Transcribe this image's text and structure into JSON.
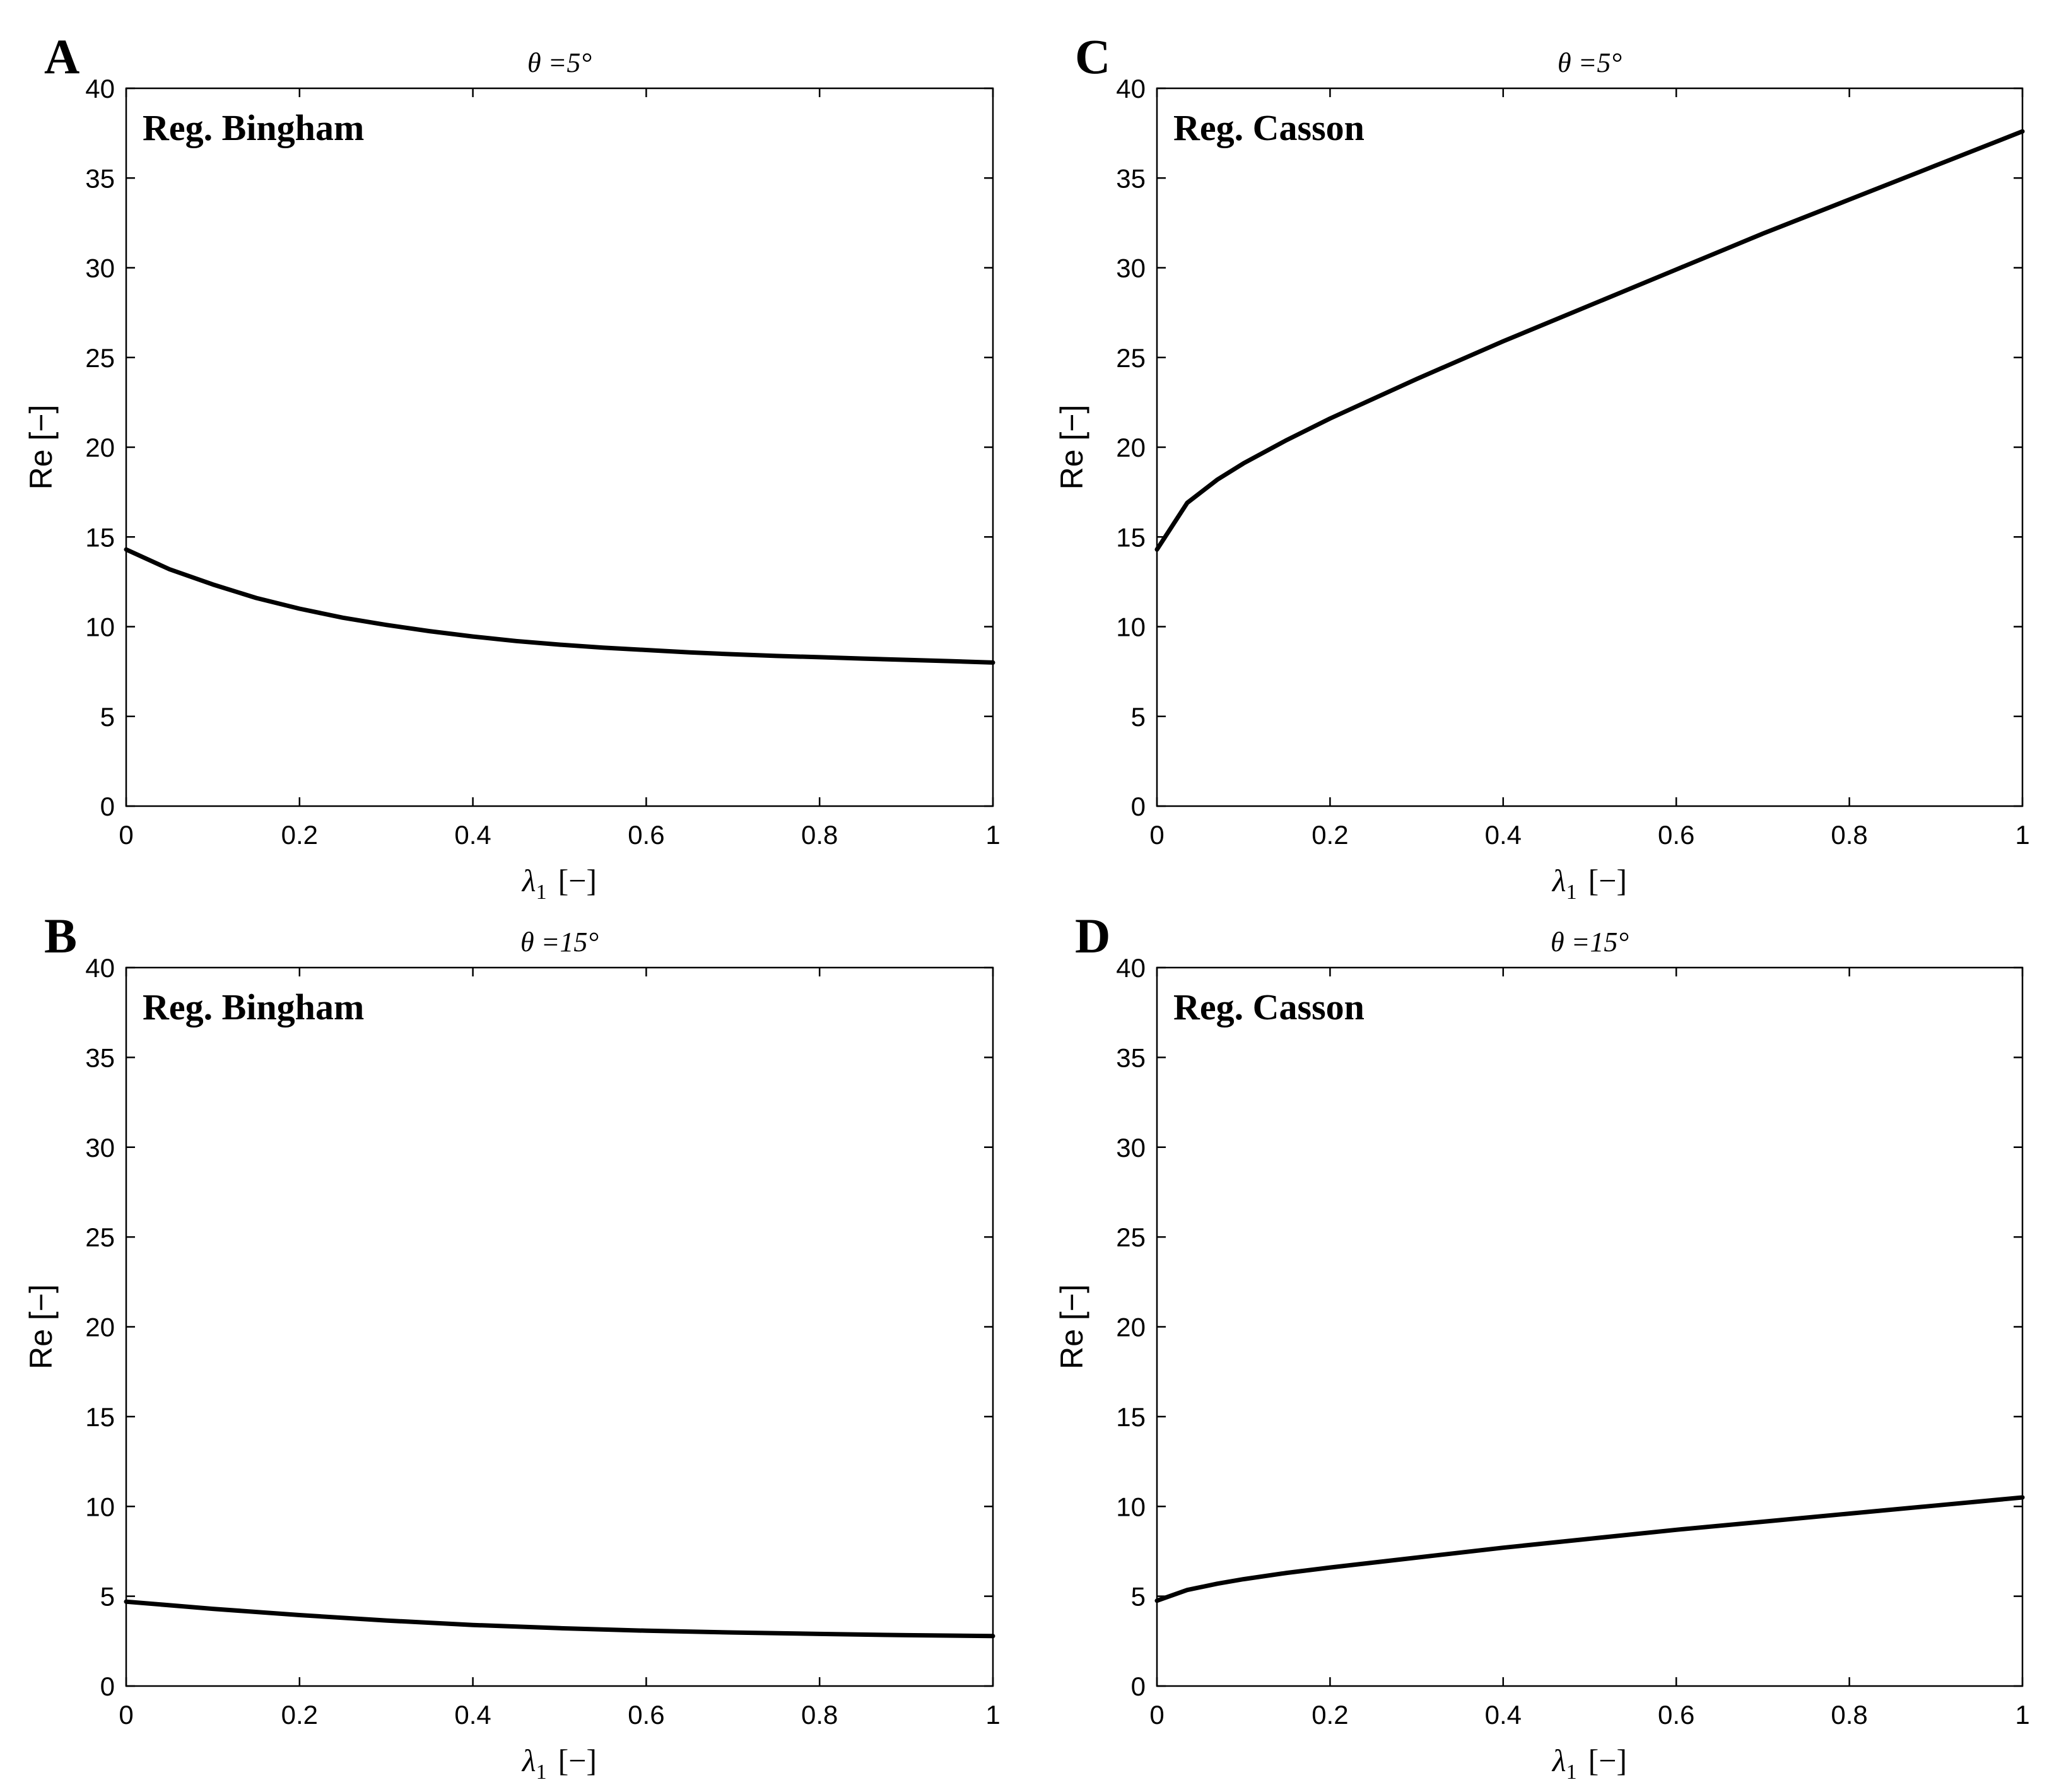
{
  "chart_data": [
    {
      "type": "line",
      "panel_letter": "A",
      "title": "θ =5°",
      "annotation": "Reg. Bingham",
      "xlabel": {
        "symbol": "λ",
        "subscript": "1",
        "unit": "[−]"
      },
      "ylabel": "Re [−]",
      "xlim": [
        0,
        1
      ],
      "ylim": [
        0,
        40
      ],
      "xticks": [
        "0",
        "0.2",
        "0.4",
        "0.6",
        "0.8",
        "1"
      ],
      "yticks": [
        "0",
        "5",
        "10",
        "15",
        "20",
        "25",
        "30",
        "35",
        "40"
      ],
      "series": [
        {
          "name": "Re",
          "x": [
            0,
            0.05,
            0.1,
            0.15,
            0.2,
            0.25,
            0.3,
            0.35,
            0.4,
            0.45,
            0.5,
            0.55,
            0.6,
            0.65,
            0.7,
            0.75,
            0.8,
            0.85,
            0.9,
            0.95,
            1.0
          ],
          "y": [
            14.3,
            13.2,
            12.35,
            11.6,
            11.0,
            10.5,
            10.1,
            9.75,
            9.45,
            9.2,
            9.0,
            8.83,
            8.7,
            8.57,
            8.46,
            8.37,
            8.3,
            8.22,
            8.15,
            8.08,
            8.0
          ]
        }
      ]
    },
    {
      "type": "line",
      "panel_letter": "B",
      "title": "θ =15°",
      "annotation": "Reg. Bingham",
      "xlabel": {
        "symbol": "λ",
        "subscript": "1",
        "unit": "[−]"
      },
      "ylabel": "Re [−]",
      "xlim": [
        0,
        1
      ],
      "ylim": [
        0,
        40
      ],
      "xticks": [
        "0",
        "0.2",
        "0.4",
        "0.6",
        "0.8",
        "1"
      ],
      "yticks": [
        "0",
        "5",
        "10",
        "15",
        "20",
        "25",
        "30",
        "35",
        "40"
      ],
      "series": [
        {
          "name": "Re",
          "x": [
            0,
            0.1,
            0.2,
            0.3,
            0.4,
            0.5,
            0.6,
            0.7,
            0.8,
            0.9,
            1.0
          ],
          "y": [
            4.7,
            4.3,
            3.95,
            3.65,
            3.4,
            3.22,
            3.08,
            2.98,
            2.9,
            2.83,
            2.78
          ]
        }
      ]
    },
    {
      "type": "line",
      "panel_letter": "C",
      "title": "θ =5°",
      "annotation": "Reg. Casson",
      "xlabel": {
        "symbol": "λ",
        "subscript": "1",
        "unit": "[−]"
      },
      "ylabel": "Re [−]",
      "xlim": [
        0,
        1
      ],
      "ylim": [
        0,
        40
      ],
      "xticks": [
        "0",
        "0.2",
        "0.4",
        "0.6",
        "0.8",
        "1"
      ],
      "yticks": [
        "0",
        "5",
        "10",
        "15",
        "20",
        "25",
        "30",
        "35",
        "40"
      ],
      "series": [
        {
          "name": "Re",
          "x": [
            0,
            0.035,
            0.07,
            0.1,
            0.15,
            0.2,
            0.3,
            0.4,
            0.5,
            0.6,
            0.7,
            0.8,
            0.9,
            1.0
          ],
          "y": [
            14.3,
            16.9,
            18.2,
            19.1,
            20.4,
            21.6,
            23.8,
            25.9,
            27.9,
            29.9,
            31.9,
            33.8,
            35.7,
            37.6
          ]
        }
      ]
    },
    {
      "type": "line",
      "panel_letter": "D",
      "title": "θ =15°",
      "annotation": "Reg. Casson",
      "xlabel": {
        "symbol": "λ",
        "subscript": "1",
        "unit": "[−]"
      },
      "ylabel": "Re [−]",
      "xlim": [
        0,
        1
      ],
      "ylim": [
        0,
        40
      ],
      "xticks": [
        "0",
        "0.2",
        "0.4",
        "0.6",
        "0.8",
        "1"
      ],
      "yticks": [
        "0",
        "5",
        "10",
        "15",
        "20",
        "25",
        "30",
        "35",
        "40"
      ],
      "series": [
        {
          "name": "Re",
          "x": [
            0,
            0.035,
            0.07,
            0.1,
            0.15,
            0.2,
            0.3,
            0.4,
            0.5,
            0.6,
            0.7,
            0.8,
            0.9,
            1.0
          ],
          "y": [
            4.75,
            5.35,
            5.7,
            5.95,
            6.3,
            6.6,
            7.15,
            7.7,
            8.2,
            8.7,
            9.15,
            9.6,
            10.05,
            10.5
          ]
        }
      ]
    }
  ]
}
